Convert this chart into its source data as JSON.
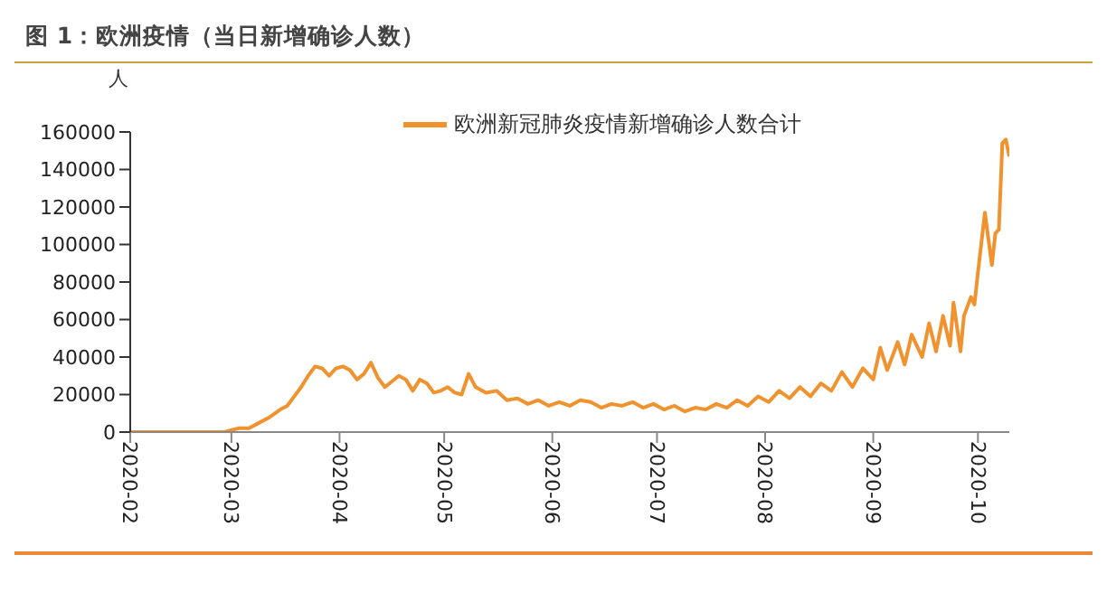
{
  "chart_data": {
    "type": "line",
    "title": "图 1：欧洲疫情（当日新增确诊人数）",
    "ylabel": "人",
    "x": [
      "2020-02-01",
      "2020-02-15",
      "2020-02-28",
      "2020-03-03",
      "2020-03-06",
      "2020-03-09",
      "2020-03-12",
      "2020-03-15",
      "2020-03-17",
      "2020-03-19",
      "2020-03-21",
      "2020-03-23",
      "2020-03-25",
      "2020-03-27",
      "2020-03-29",
      "2020-03-31",
      "2020-04-02",
      "2020-04-04",
      "2020-04-06",
      "2020-04-08",
      "2020-04-10",
      "2020-04-12",
      "2020-04-14",
      "2020-04-16",
      "2020-04-18",
      "2020-04-20",
      "2020-04-22",
      "2020-04-24",
      "2020-04-26",
      "2020-04-28",
      "2020-04-30",
      "2020-05-02",
      "2020-05-04",
      "2020-05-06",
      "2020-05-08",
      "2020-05-10",
      "2020-05-13",
      "2020-05-16",
      "2020-05-19",
      "2020-05-22",
      "2020-05-25",
      "2020-05-28",
      "2020-05-31",
      "2020-06-03",
      "2020-06-06",
      "2020-06-09",
      "2020-06-12",
      "2020-06-15",
      "2020-06-18",
      "2020-06-21",
      "2020-06-24",
      "2020-06-27",
      "2020-06-30",
      "2020-07-03",
      "2020-07-06",
      "2020-07-09",
      "2020-07-12",
      "2020-07-15",
      "2020-07-18",
      "2020-07-21",
      "2020-07-24",
      "2020-07-27",
      "2020-07-30",
      "2020-08-02",
      "2020-08-05",
      "2020-08-08",
      "2020-08-11",
      "2020-08-14",
      "2020-08-17",
      "2020-08-20",
      "2020-08-23",
      "2020-08-26",
      "2020-08-29",
      "2020-09-01",
      "2020-09-03",
      "2020-09-05",
      "2020-09-08",
      "2020-09-10",
      "2020-09-12",
      "2020-09-15",
      "2020-09-17",
      "2020-09-19",
      "2020-09-21",
      "2020-09-23",
      "2020-09-24",
      "2020-09-26",
      "2020-09-27",
      "2020-09-29",
      "2020-09-30",
      "2020-10-01",
      "2020-10-03",
      "2020-10-05",
      "2020-10-06",
      "2020-10-07",
      "2020-10-08",
      "2020-10-09",
      "2020-10-10"
    ],
    "series": [
      {
        "name": "欧洲新冠肺炎疫情新增确诊人数合计",
        "color": "#f0922e",
        "values": [
          0,
          0,
          0,
          2000,
          2000,
          5000,
          8000,
          12000,
          14000,
          19000,
          24000,
          30000,
          35000,
          34000,
          30000,
          34000,
          35000,
          33000,
          28000,
          31000,
          37000,
          29000,
          24000,
          27000,
          30000,
          28000,
          22000,
          28000,
          26000,
          21000,
          22000,
          24000,
          21000,
          20000,
          31000,
          24000,
          21000,
          22000,
          17000,
          18000,
          15000,
          17000,
          14000,
          16000,
          14000,
          17000,
          16000,
          13000,
          15000,
          14000,
          16000,
          13000,
          15000,
          12000,
          14000,
          11000,
          13000,
          12000,
          15000,
          13000,
          17000,
          14000,
          19000,
          16000,
          22000,
          18000,
          24000,
          19000,
          26000,
          22000,
          32000,
          24000,
          34000,
          28000,
          45000,
          33000,
          48000,
          36000,
          52000,
          40000,
          58000,
          43000,
          62000,
          46000,
          69000,
          43000,
          62000,
          72000,
          68000,
          85000,
          117000,
          89000,
          106000,
          108000,
          154000,
          156000,
          147000
        ]
      }
    ],
    "xlim": [
      "2020-02-01",
      "2020-10-10"
    ],
    "xticks": [
      "2020-02",
      "2020-03",
      "2020-04",
      "2020-05",
      "2020-06",
      "2020-07",
      "2020-08",
      "2020-09",
      "2020-10"
    ],
    "ylim": [
      0,
      160000
    ],
    "yticks": [
      0,
      20000,
      40000,
      60000,
      80000,
      100000,
      120000,
      140000,
      160000
    ],
    "grid": false,
    "legend": "top",
    "marker": "none",
    "line_style": "solid"
  }
}
